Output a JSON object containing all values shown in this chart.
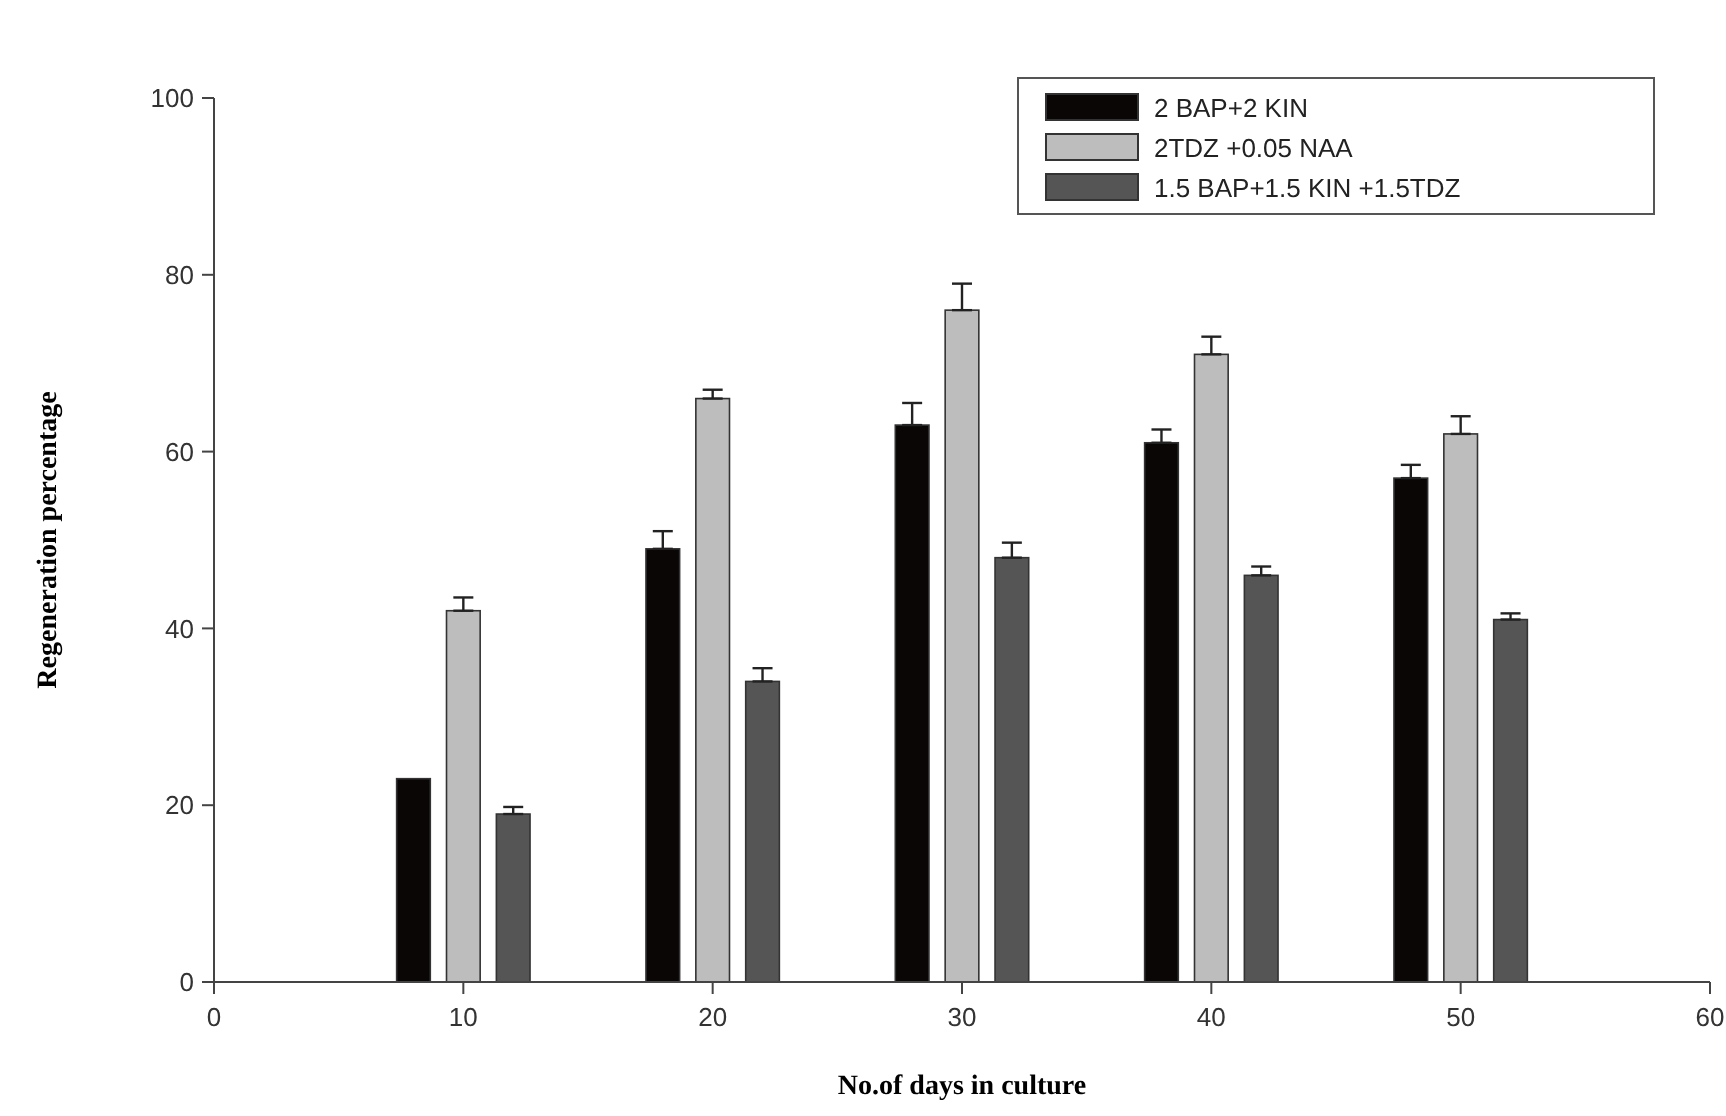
{
  "chart_data": {
    "type": "bar",
    "xlabel": "No.of days in culture",
    "ylabel": "Regeneration percentage",
    "x": [
      10,
      20,
      30,
      40,
      50
    ],
    "xlim": [
      0,
      60
    ],
    "xticks": [
      0,
      10,
      20,
      30,
      40,
      50,
      60
    ],
    "ylim": [
      0,
      100
    ],
    "yticks": [
      0,
      20,
      40,
      60,
      80,
      100
    ],
    "grid": false,
    "legend": "top right",
    "series": [
      {
        "name": "2 BAP+2 KIN",
        "color": "#0a0606",
        "values": [
          23,
          49,
          63,
          61,
          57
        ],
        "errors": [
          null,
          [
            49,
            51
          ],
          [
            63,
            65.5
          ],
          [
            61,
            62.5
          ],
          [
            57,
            58.5
          ]
        ]
      },
      {
        "name": "2TDZ +0.05 NAA",
        "color": "#bdbdbd",
        "values": [
          42,
          66,
          76,
          71,
          62
        ],
        "errors": [
          [
            42,
            43.5
          ],
          [
            66,
            67
          ],
          [
            76,
            79
          ],
          [
            71,
            73
          ],
          [
            62,
            64
          ]
        ]
      },
      {
        "name": "1.5 BAP+1.5 KIN +1.5TDZ",
        "color": "#555555",
        "values": [
          19,
          34,
          48,
          46,
          41
        ],
        "errors": [
          [
            19,
            19.8
          ],
          [
            34,
            35.5
          ],
          [
            48,
            49.7
          ],
          [
            46,
            47
          ],
          [
            41,
            41.7
          ]
        ]
      }
    ]
  }
}
